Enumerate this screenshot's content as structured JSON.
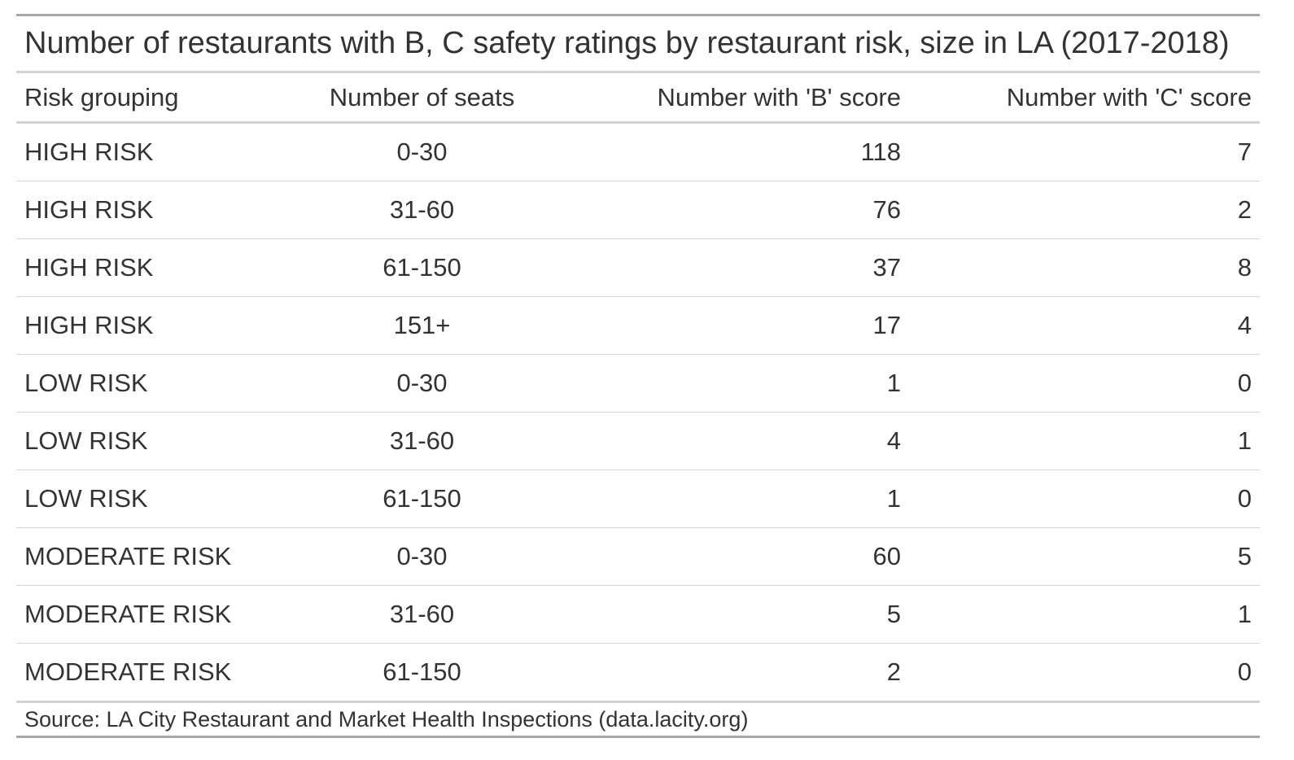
{
  "chart_data": {
    "type": "table",
    "title": "Number of restaurants with B, C safety ratings by restaurant risk, size in LA (2017-2018)",
    "columns": [
      "Risk grouping",
      "Number of seats",
      "Number with 'B' score",
      "Number with 'C' score"
    ],
    "rows": [
      [
        "HIGH RISK",
        "0-30",
        "118",
        "7"
      ],
      [
        "HIGH RISK",
        "31-60",
        "76",
        "2"
      ],
      [
        "HIGH RISK",
        "61-150",
        "37",
        "8"
      ],
      [
        "HIGH RISK",
        "151+",
        "17",
        "4"
      ],
      [
        "LOW RISK",
        "0-30",
        "1",
        "0"
      ],
      [
        "LOW RISK",
        "31-60",
        "4",
        "1"
      ],
      [
        "LOW RISK",
        "61-150",
        "1",
        "0"
      ],
      [
        "MODERATE RISK",
        "0-30",
        "60",
        "5"
      ],
      [
        "MODERATE RISK",
        "31-60",
        "5",
        "1"
      ],
      [
        "MODERATE RISK",
        "61-150",
        "2",
        "0"
      ]
    ],
    "source": "Source: LA City Restaurant and Market Health Inspections (data.lacity.org)"
  }
}
